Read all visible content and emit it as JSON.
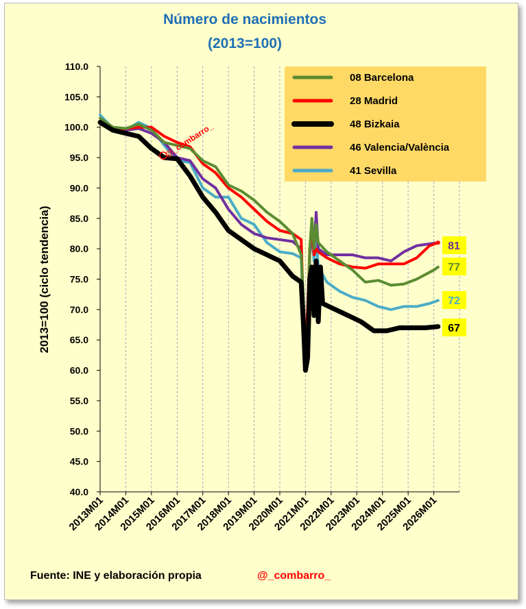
{
  "colors": {
    "background": "#FFFFCC",
    "legend_bg": "#FFD966",
    "end_label_bg": "#FFFF00",
    "title": "#1F6FB4",
    "handle": "#FF0000"
  },
  "chart_data": {
    "type": "line",
    "title": [
      "Número de nacimientos",
      "(2013=100)"
    ],
    "ylabel": "2013=100  (ciclo tendencia)",
    "xlabel": "",
    "ylim": [
      40,
      110
    ],
    "yticks": [
      40,
      45,
      50,
      55,
      60,
      65,
      70,
      75,
      80,
      85,
      90,
      95,
      100,
      105,
      110
    ],
    "xlim": [
      0,
      168
    ],
    "x_tick_labels": [
      "2013M01",
      "2014M01",
      "2015M01",
      "2016M01",
      "2017M01",
      "2018M01",
      "2019M01",
      "2020M01",
      "2021M01",
      "2022M01",
      "2023M01",
      "2024M01",
      "2025M01",
      "2026M01"
    ],
    "grid": "vertical-dashed",
    "legend_position": "top-right",
    "series": [
      {
        "name": "08 Barcelona",
        "color": "#5B8C32",
        "width": 4,
        "end_label": "77",
        "points": [
          [
            0,
            101.5
          ],
          [
            6,
            100
          ],
          [
            12,
            99.8
          ],
          [
            18,
            100.5
          ],
          [
            24,
            99.5
          ],
          [
            30,
            97.5
          ],
          [
            36,
            97
          ],
          [
            42,
            96.5
          ],
          [
            48,
            94.5
          ],
          [
            54,
            93.5
          ],
          [
            60,
            90.5
          ],
          [
            66,
            89.5
          ],
          [
            72,
            88
          ],
          [
            78,
            86
          ],
          [
            84,
            84.5
          ],
          [
            90,
            82.5
          ],
          [
            94,
            79
          ],
          [
            95,
            72
          ],
          [
            96,
            63
          ],
          [
            97,
            68
          ],
          [
            98,
            80
          ],
          [
            99,
            85
          ],
          [
            100,
            80
          ],
          [
            101,
            84
          ],
          [
            102,
            81
          ],
          [
            106,
            79.5
          ],
          [
            112,
            78
          ],
          [
            118,
            76.5
          ],
          [
            124,
            74.5
          ],
          [
            130,
            74.8
          ],
          [
            136,
            74
          ],
          [
            142,
            74.2
          ],
          [
            148,
            75
          ],
          [
            156,
            76.5
          ],
          [
            158,
            77
          ]
        ]
      },
      {
        "name": "28 Madrid",
        "color": "#FF0000",
        "width": 4,
        "end_label": "81",
        "points": [
          [
            0,
            101
          ],
          [
            6,
            99.5
          ],
          [
            12,
            99.8
          ],
          [
            18,
            100
          ],
          [
            24,
            100
          ],
          [
            30,
            98.5
          ],
          [
            36,
            97.5
          ],
          [
            42,
            96.8
          ],
          [
            48,
            94
          ],
          [
            54,
            92.5
          ],
          [
            60,
            90
          ],
          [
            66,
            88.5
          ],
          [
            72,
            86.5
          ],
          [
            78,
            84.5
          ],
          [
            84,
            83
          ],
          [
            90,
            82.5
          ],
          [
            94,
            81.5
          ],
          [
            95,
            70
          ],
          [
            96,
            64
          ],
          [
            97,
            70
          ],
          [
            98,
            80
          ],
          [
            99,
            83.5
          ],
          [
            100,
            79
          ],
          [
            101,
            80
          ],
          [
            102,
            79.5
          ],
          [
            106,
            78.5
          ],
          [
            112,
            77.5
          ],
          [
            118,
            77
          ],
          [
            124,
            76.8
          ],
          [
            130,
            77.5
          ],
          [
            136,
            77.5
          ],
          [
            142,
            77.5
          ],
          [
            148,
            78.5
          ],
          [
            154,
            80.5
          ],
          [
            158,
            81
          ]
        ]
      },
      {
        "name": "48 Bizkaia",
        "color": "#000000",
        "width": 7,
        "end_label": "67",
        "points": [
          [
            0,
            100.8
          ],
          [
            6,
            99.5
          ],
          [
            12,
            99
          ],
          [
            18,
            98.5
          ],
          [
            24,
            96.5
          ],
          [
            30,
            95
          ],
          [
            36,
            94.8
          ],
          [
            42,
            92
          ],
          [
            48,
            88.5
          ],
          [
            54,
            86
          ],
          [
            60,
            83
          ],
          [
            66,
            81.5
          ],
          [
            72,
            80
          ],
          [
            78,
            79
          ],
          [
            84,
            78
          ],
          [
            90,
            75.5
          ],
          [
            94,
            74.5
          ],
          [
            95,
            68
          ],
          [
            96,
            60
          ],
          [
            97,
            62
          ],
          [
            98,
            75
          ],
          [
            99,
            77
          ],
          [
            100,
            69
          ],
          [
            101,
            78
          ],
          [
            102,
            68
          ],
          [
            103,
            77
          ],
          [
            104,
            71
          ],
          [
            110,
            70
          ],
          [
            116,
            69
          ],
          [
            122,
            68
          ],
          [
            128,
            66.5
          ],
          [
            134,
            66.5
          ],
          [
            140,
            67
          ],
          [
            146,
            67
          ],
          [
            152,
            67
          ],
          [
            158,
            67.2
          ]
        ]
      },
      {
        "name": "46 Valencia/València",
        "color": "#7030A0",
        "width": 4,
        "end_label": "81",
        "points": [
          [
            0,
            101
          ],
          [
            6,
            99.5
          ],
          [
            12,
            99.5
          ],
          [
            18,
            99.8
          ],
          [
            24,
            99
          ],
          [
            30,
            97.5
          ],
          [
            36,
            95
          ],
          [
            42,
            94.5
          ],
          [
            48,
            91.5
          ],
          [
            54,
            90
          ],
          [
            60,
            86.5
          ],
          [
            66,
            84
          ],
          [
            72,
            82.5
          ],
          [
            78,
            81.8
          ],
          [
            84,
            81.5
          ],
          [
            90,
            81.2
          ],
          [
            94,
            80
          ],
          [
            95,
            70
          ],
          [
            96,
            60
          ],
          [
            97,
            66
          ],
          [
            98,
            79
          ],
          [
            99,
            83
          ],
          [
            100,
            80
          ],
          [
            101,
            86
          ],
          [
            102,
            80
          ],
          [
            106,
            79
          ],
          [
            112,
            79
          ],
          [
            118,
            79
          ],
          [
            124,
            78.5
          ],
          [
            130,
            78.5
          ],
          [
            136,
            78
          ],
          [
            142,
            79.5
          ],
          [
            148,
            80.5
          ],
          [
            154,
            80.8
          ],
          [
            158,
            81
          ]
        ]
      },
      {
        "name": "41 Sevilla",
        "color": "#4BACC6",
        "width": 4,
        "end_label": "72",
        "points": [
          [
            0,
            102
          ],
          [
            6,
            99.8
          ],
          [
            12,
            99.5
          ],
          [
            18,
            100.8
          ],
          [
            24,
            99.8
          ],
          [
            30,
            97
          ],
          [
            36,
            94.5
          ],
          [
            42,
            94.2
          ],
          [
            48,
            90
          ],
          [
            54,
            88.5
          ],
          [
            60,
            88.5
          ],
          [
            66,
            85
          ],
          [
            72,
            84
          ],
          [
            78,
            81
          ],
          [
            84,
            79.5
          ],
          [
            90,
            79.2
          ],
          [
            94,
            78.5
          ],
          [
            95,
            70
          ],
          [
            96,
            61
          ],
          [
            97,
            68
          ],
          [
            98,
            80
          ],
          [
            99,
            82.5
          ],
          [
            100,
            78
          ],
          [
            101,
            82
          ],
          [
            102,
            77
          ],
          [
            106,
            74.5
          ],
          [
            112,
            73
          ],
          [
            118,
            72
          ],
          [
            124,
            71.5
          ],
          [
            130,
            70.5
          ],
          [
            136,
            70
          ],
          [
            142,
            70.5
          ],
          [
            148,
            70.5
          ],
          [
            154,
            71
          ],
          [
            158,
            71.5
          ]
        ]
      }
    ],
    "annotations": [
      "@_combarro_"
    ]
  },
  "source": "Fuente: INE y elaboración propia",
  "handle": "@_combarro_",
  "watermark": "@_combarro_"
}
